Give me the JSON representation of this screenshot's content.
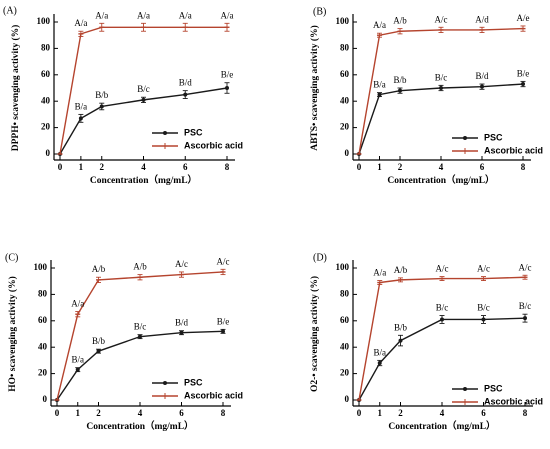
{
  "colors": {
    "psc": "#1a1a1a",
    "ascorbic": "#b5442e"
  },
  "chart_data": [
    {
      "type": "line",
      "panel": "(A)",
      "xlabel": "Concentration（mg/mL）",
      "ylabel": "DPPH• scavenging activity (%)",
      "x": [
        0,
        1,
        2,
        4,
        6,
        8
      ],
      "x_ticks": [
        "0",
        "1",
        "2",
        "4",
        "6",
        "8"
      ],
      "y_ticks": [
        "0",
        "20",
        "40",
        "60",
        "80",
        "100"
      ],
      "ylim": [
        0,
        100
      ],
      "legend_position": "bottom-right",
      "series": [
        {
          "name": "PSC",
          "values": [
            0,
            27,
            36,
            41,
            45,
            50
          ],
          "err": [
            0,
            3,
            2.5,
            2,
            3,
            4
          ],
          "labels": [
            "",
            "B/a",
            "B/b",
            "B/c",
            "B/d",
            "B/e"
          ],
          "color_key": "psc",
          "marker": "circle"
        },
        {
          "name": "Ascorbic acid",
          "values": [
            0,
            91,
            96,
            96,
            96,
            96
          ],
          "err": [
            0,
            2,
            3,
            3,
            3,
            3
          ],
          "labels": [
            "",
            "A/a",
            "A/a",
            "A/a",
            "A/a",
            "A/a"
          ],
          "color_key": "ascorbic",
          "marker": "tick"
        }
      ]
    },
    {
      "type": "line",
      "panel": "(B)",
      "xlabel": "Concentration（mg/mL）",
      "ylabel": "ABTS• scavenging activity (%)",
      "x": [
        0,
        1,
        2,
        4,
        6,
        8
      ],
      "x_ticks": [
        "0",
        "1",
        "2",
        "4",
        "6",
        "8"
      ],
      "y_ticks": [
        "0",
        "20",
        "40",
        "60",
        "80",
        "100"
      ],
      "ylim": [
        0,
        100
      ],
      "legend_position": "bottom-right",
      "series": [
        {
          "name": "PSC",
          "values": [
            0,
            45,
            48,
            50,
            51,
            53
          ],
          "err": [
            0,
            1.5,
            2,
            2,
            2,
            2
          ],
          "labels": [
            "",
            "B/a",
            "B/b",
            "B/c",
            "B/d",
            "B/e"
          ],
          "color_key": "psc",
          "marker": "circle"
        },
        {
          "name": "Ascorbic acid",
          "values": [
            0,
            90,
            93,
            94,
            94,
            95
          ],
          "err": [
            0,
            1.5,
            2,
            2,
            2,
            2
          ],
          "labels": [
            "",
            "A/a",
            "A/b",
            "A/c",
            "A/d",
            "A/e"
          ],
          "color_key": "ascorbic",
          "marker": "tick"
        }
      ]
    },
    {
      "type": "line",
      "panel": "(C)",
      "xlabel": "Concentration（mg/mL）",
      "ylabel": "HO• scavenging activity (%)",
      "x": [
        0,
        1,
        2,
        4,
        6,
        8
      ],
      "x_ticks": [
        "0",
        "1",
        "2",
        "4",
        "6",
        "8"
      ],
      "y_ticks": [
        "0",
        "20",
        "40",
        "60",
        "80",
        "100"
      ],
      "ylim": [
        0,
        100
      ],
      "legend_position": "bottom-right",
      "series": [
        {
          "name": "PSC",
          "values": [
            0,
            23,
            37,
            48,
            51,
            52
          ],
          "err": [
            0,
            1.5,
            1.5,
            1.5,
            1.5,
            1.5
          ],
          "labels": [
            "",
            "B/a",
            "B/b",
            "B/c",
            "B/d",
            "B/e"
          ],
          "color_key": "psc",
          "marker": "circle"
        },
        {
          "name": "Ascorbic acid",
          "values": [
            0,
            65,
            91,
            93,
            95,
            97
          ],
          "err": [
            0,
            2,
            2,
            2,
            2,
            2
          ],
          "labels": [
            "",
            "A/a",
            "A/b",
            "A/b",
            "A/c",
            "A/c"
          ],
          "color_key": "ascorbic",
          "marker": "tick"
        }
      ]
    },
    {
      "type": "line",
      "panel": "(D)",
      "xlabel": "Concentration（mg/mL）",
      "ylabel": "O2-• scavenging activity (%)",
      "x": [
        0,
        1,
        2,
        4,
        6,
        8
      ],
      "x_ticks": [
        "0",
        "1",
        "2",
        "4",
        "6",
        "8"
      ],
      "y_ticks": [
        "0",
        "20",
        "40",
        "60",
        "80",
        "100"
      ],
      "ylim": [
        0,
        100
      ],
      "legend_position": "bottom-right",
      "series": [
        {
          "name": "PSC",
          "values": [
            0,
            28,
            45,
            61,
            61,
            62
          ],
          "err": [
            0,
            2,
            4,
            3,
            3,
            3
          ],
          "labels": [
            "",
            "B/a",
            "B/b",
            "B/c",
            "B/c",
            "B/c"
          ],
          "color_key": "psc",
          "marker": "circle"
        },
        {
          "name": "Ascorbic acid",
          "values": [
            0,
            89,
            91,
            92,
            92,
            93
          ],
          "err": [
            0,
            1.5,
            1.5,
            1.5,
            1.5,
            1.5
          ],
          "labels": [
            "",
            "A/a",
            "A/b",
            "A/c",
            "A/c",
            "A/c"
          ],
          "color_key": "ascorbic",
          "marker": "tick"
        }
      ]
    }
  ]
}
